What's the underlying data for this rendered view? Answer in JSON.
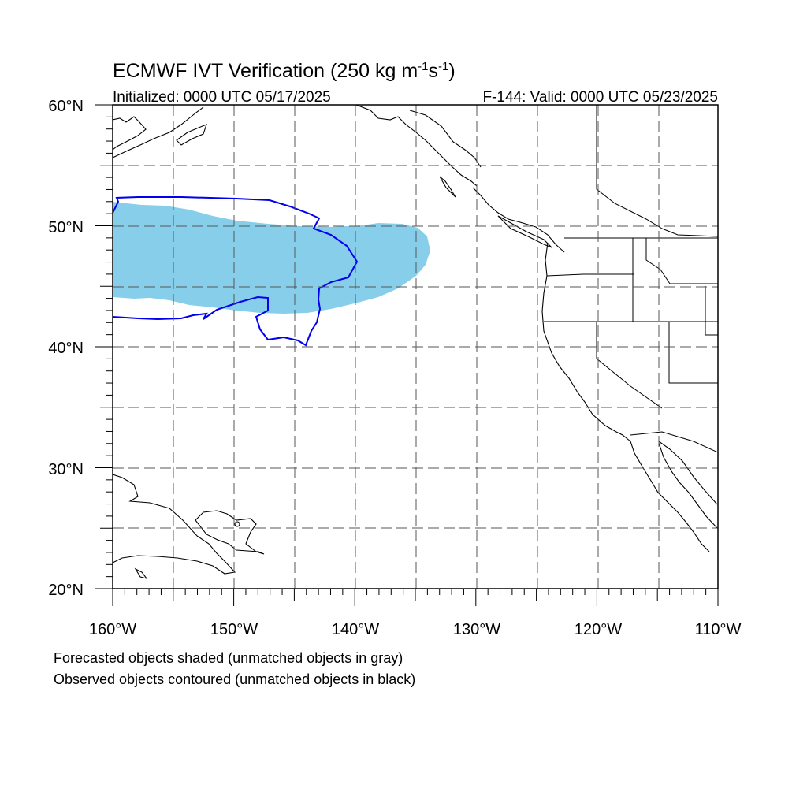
{
  "title": {
    "main": "ECMWF IVT Verification (250 kg m",
    "sup1": "-1",
    "mid": "s",
    "sup2": "-1",
    "end": ")"
  },
  "initialized": "Initialized: 0000 UTC 05/17/2025",
  "valid": "F-144: Valid: 0000 UTC 05/23/2025",
  "axes": {
    "lon_labels": [
      "160°W",
      "150°W",
      "140°W",
      "130°W",
      "120°W",
      "110°W"
    ],
    "lat_labels": [
      "60°N",
      "50°N",
      "40°N",
      "30°N",
      "20°N"
    ],
    "lon_range": [
      -160,
      -110
    ],
    "lat_range": [
      20,
      60
    ],
    "grid_spacing_deg": 5,
    "grid_style": "dashed"
  },
  "captions": {
    "line1": "Forecasted objects shaded (unmatched objects in gray)",
    "line2": "Observed objects contoured (unmatched objects in black)"
  },
  "colors": {
    "forecast_fill": "#87ceeb",
    "observed_contour": "#0000ee",
    "coastline": "#000000",
    "grid": "#555555"
  }
}
